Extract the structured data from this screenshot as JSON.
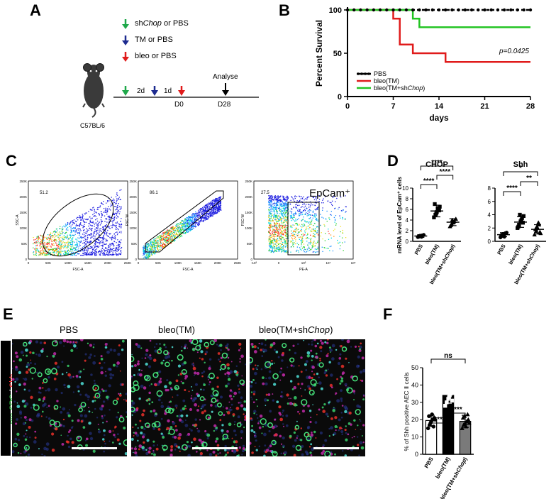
{
  "panels": {
    "A": "A",
    "B": "B",
    "C": "C",
    "D": "D",
    "E": "E",
    "F": "F"
  },
  "panelA": {
    "legend": [
      {
        "text_prefix": "sh",
        "text_italic": "Chop",
        "text_suffix": " or PBS",
        "color": "#1fa84a"
      },
      {
        "text_prefix": "TM or PBS",
        "text_italic": "",
        "text_suffix": "",
        "color": "#1d2b8f"
      },
      {
        "text_prefix": "bleo or PBS",
        "text_italic": "",
        "text_suffix": "",
        "color": "#e01b1b"
      }
    ],
    "intervals": [
      "2d",
      "1d"
    ],
    "day_labels": [
      "D0",
      "D28"
    ],
    "analyse": "Analyse",
    "strain": "C57BL/6"
  },
  "panelB": {
    "chart_data": {
      "type": "line",
      "ylabel": "Percent Survival",
      "xlabel": "days",
      "xlim": [
        0,
        28
      ],
      "ylim": [
        0,
        100
      ],
      "xticks": [
        0,
        7,
        14,
        21,
        28
      ],
      "yticks": [
        0,
        50,
        100
      ],
      "pvalue": "p=0.0425",
      "series": [
        {
          "name": "PBS",
          "color": "#000000",
          "steps": [
            [
              0,
              100
            ],
            [
              28,
              100
            ]
          ]
        },
        {
          "name": "bleo(TM)",
          "color": "#e01b1b",
          "steps": [
            [
              0,
              100
            ],
            [
              7,
              100
            ],
            [
              7,
              90
            ],
            [
              8,
              90
            ],
            [
              8,
              60
            ],
            [
              10,
              60
            ],
            [
              10,
              50
            ],
            [
              15,
              50
            ],
            [
              15,
              40
            ],
            [
              28,
              40
            ]
          ]
        },
        {
          "name": "bleo(TM+shChop)",
          "color": "#22c422",
          "steps": [
            [
              0,
              100
            ],
            [
              10,
              100
            ],
            [
              10,
              90
            ],
            [
              11,
              90
            ],
            [
              11,
              80
            ],
            [
              28,
              80
            ]
          ]
        }
      ]
    },
    "legend": [
      {
        "label": "PBS",
        "color": "#000000"
      },
      {
        "label": "bleo(TM)",
        "color": "#e01b1b"
      },
      {
        "label_prefix": "bleo(TM+sh",
        "label_italic": "Chop",
        "label_suffix": ")",
        "color": "#22c422"
      }
    ]
  },
  "panelC": {
    "plots": [
      {
        "gate": "51.2",
        "xlabel": "FSC-A",
        "ylabel": "SSC-A",
        "xticks": [
          "0",
          "50K",
          "100K",
          "150K",
          "200K",
          "250K"
        ],
        "yticks": [
          "0",
          "50K",
          "100K",
          "150K",
          "200K",
          "250K"
        ]
      },
      {
        "gate": "86.1",
        "xlabel": "FSC-A",
        "ylabel": "FSC-W",
        "xticks": [
          "0",
          "50K",
          "100K",
          "150K",
          "200K",
          "250K"
        ],
        "yticks": [
          "0",
          "50K",
          "100K",
          "150K",
          "200K",
          "250K"
        ]
      },
      {
        "gate": "27.5",
        "xlabel": "PE-A",
        "ylabel": "FSC-W",
        "xticks": [
          "-10³",
          "0",
          "10³",
          "10⁴",
          "10⁵"
        ],
        "yticks": [
          "0",
          "50K",
          "100K",
          "150K",
          "200K",
          "250K"
        ],
        "title": "EpCam⁺"
      }
    ]
  },
  "panelD": {
    "ylabel": "mRNA level of EpCam⁺ cells",
    "categories": [
      "PBS",
      "bleo(TM)",
      "bleo(TM+shChop)"
    ],
    "chart_data": [
      {
        "type": "bar",
        "title": "CHOP",
        "ylim": [
          0,
          10
        ],
        "yticks": [
          0,
          2,
          4,
          6,
          8,
          10
        ],
        "means": [
          1.0,
          5.7,
          3.6
        ],
        "sd": [
          0.25,
          1.1,
          0.65
        ],
        "points": [
          [
            0.8,
            0.9,
            1.0,
            1.1,
            1.2,
            0.95,
            1.05,
            0.85
          ],
          [
            4.5,
            5.0,
            5.5,
            6.0,
            6.5,
            7.0,
            5.2,
            6.2,
            5.8
          ],
          [
            2.8,
            3.2,
            3.5,
            3.8,
            4.2,
            3.0,
            4.0,
            3.6
          ]
        ],
        "sig": [
          "****",
          "****",
          "****"
        ]
      },
      {
        "type": "bar",
        "title": "Shh",
        "ylim": [
          0,
          8
        ],
        "yticks": [
          0,
          2,
          4,
          6,
          8
        ],
        "means": [
          1.0,
          2.9,
          1.8
        ],
        "sd": [
          0.3,
          0.8,
          0.7
        ],
        "points": [
          [
            0.6,
            0.8,
            1.0,
            1.2,
            1.3,
            0.9,
            1.1,
            0.7
          ],
          [
            2.0,
            2.5,
            3.0,
            3.5,
            3.8,
            2.2,
            4.0,
            3.2,
            2.8
          ],
          [
            1.0,
            1.5,
            2.0,
            2.5,
            1.2,
            1.8,
            2.2,
            2.8,
            1.4
          ]
        ],
        "sig": [
          "****",
          "**",
          "*"
        ]
      }
    ]
  },
  "panelE": {
    "titles": [
      {
        "prefix": "PBS",
        "italic": "",
        "suffix": ""
      },
      {
        "prefix": "bleo(TM)",
        "italic": "",
        "suffix": ""
      },
      {
        "prefix": "bleo(TM+sh",
        "italic": "Chop",
        "suffix": ")"
      }
    ],
    "side_label_1": "pro-SPC",
    "side_label_sep": " / ",
    "side_label_2": "Shh"
  },
  "panelF": {
    "chart_data": {
      "type": "bar",
      "ylabel": "% of Shh positive AEC Ⅱ cells",
      "categories": [
        "PBS",
        "bleo(TM)",
        "bleo(TM+shChop)"
      ],
      "ylim": [
        0,
        50
      ],
      "yticks": [
        0,
        10,
        20,
        30,
        40,
        50
      ],
      "means": [
        19.5,
        34.0,
        19.0
      ],
      "sd": [
        3.0,
        4.5,
        3.5
      ],
      "colors": [
        "#ffffff",
        "#000000",
        "#7a7a7a"
      ],
      "points": [
        [
          15,
          17,
          19,
          20,
          21,
          22,
          18,
          23,
          16,
          20
        ],
        [
          28,
          30,
          32,
          34,
          36,
          38,
          40,
          33,
          35,
          31
        ],
        [
          15,
          17,
          18,
          19,
          20,
          21,
          22,
          16,
          23,
          18
        ]
      ],
      "sig": [
        "****",
        "****",
        "ns"
      ]
    }
  }
}
